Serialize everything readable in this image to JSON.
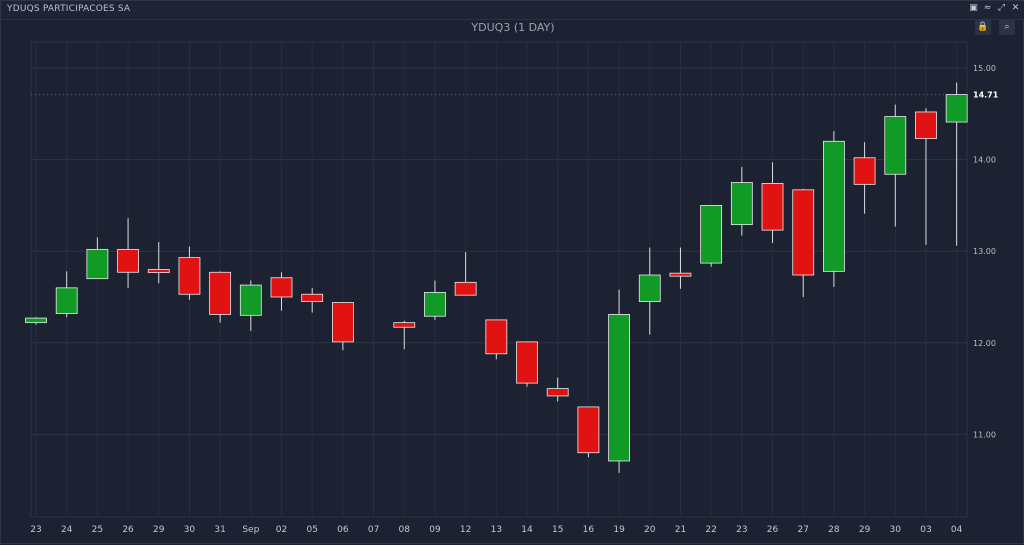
{
  "company": "YDUQS PARTICIPACOES SA",
  "toolbar_icons": [
    "window-icon",
    "settings-icon",
    "expand-icon",
    "close-icon"
  ],
  "buttons": {
    "lock_icon": "lock-icon",
    "zoom_icon": "zoom-icon"
  },
  "colors": {
    "up": "#119a26",
    "down": "#e01212",
    "background": "#1c2231",
    "grid": "#2c3446"
  },
  "chart_data": {
    "type": "candlestick",
    "title": "YDUQ3 (1 DAY)",
    "y_ticks": [
      "15.00",
      "14.00",
      "13.00",
      "12.00",
      "11.00"
    ],
    "last_price_label": "14.71",
    "last_price": 14.71,
    "ylim": [
      10.1,
      15.3
    ],
    "categories": [
      "23",
      "24",
      "25",
      "26",
      "29",
      "30",
      "31",
      "Sep",
      "02",
      "05",
      "06",
      "07",
      "08",
      "09",
      "12",
      "13",
      "14",
      "15",
      "16",
      "19",
      "20",
      "21",
      "22",
      "23",
      "26",
      "27",
      "28",
      "29",
      "30",
      "03",
      "04"
    ],
    "candles": [
      {
        "o": 12.22,
        "h": 12.28,
        "l": 12.2,
        "c": 12.27
      },
      {
        "o": 12.32,
        "h": 12.78,
        "l": 12.28,
        "c": 12.6
      },
      {
        "o": 12.7,
        "h": 13.15,
        "l": 12.7,
        "c": 13.02
      },
      {
        "o": 13.02,
        "h": 13.36,
        "l": 12.6,
        "c": 12.77
      },
      {
        "o": 12.8,
        "h": 13.1,
        "l": 12.65,
        "c": 12.77
      },
      {
        "o": 12.93,
        "h": 13.05,
        "l": 12.47,
        "c": 12.53
      },
      {
        "o": 12.77,
        "h": 12.78,
        "l": 12.22,
        "c": 12.31
      },
      {
        "o": 12.3,
        "h": 12.68,
        "l": 12.13,
        "c": 12.63
      },
      {
        "o": 12.71,
        "h": 12.77,
        "l": 12.35,
        "c": 12.5
      },
      {
        "o": 12.53,
        "h": 12.6,
        "l": 12.33,
        "c": 12.45
      },
      {
        "o": 12.44,
        "h": 12.44,
        "l": 11.92,
        "c": 12.01
      },
      null,
      {
        "o": 12.22,
        "h": 12.24,
        "l": 11.93,
        "c": 12.17
      },
      {
        "o": 12.29,
        "h": 12.68,
        "l": 12.25,
        "c": 12.55
      },
      {
        "o": 12.66,
        "h": 12.99,
        "l": 12.52,
        "c": 12.52
      },
      {
        "o": 12.25,
        "h": 12.25,
        "l": 11.82,
        "c": 11.88
      },
      {
        "o": 12.01,
        "h": 12.01,
        "l": 11.52,
        "c": 11.56
      },
      {
        "o": 11.5,
        "h": 11.62,
        "l": 11.36,
        "c": 11.42
      },
      {
        "o": 11.3,
        "h": 11.3,
        "l": 10.75,
        "c": 10.8
      },
      {
        "o": 10.71,
        "h": 12.58,
        "l": 10.58,
        "c": 12.31
      },
      {
        "o": 12.45,
        "h": 13.04,
        "l": 12.09,
        "c": 12.74
      },
      {
        "o": 12.76,
        "h": 13.04,
        "l": 12.59,
        "c": 12.74
      },
      {
        "o": 12.87,
        "h": 13.5,
        "l": 12.83,
        "c": 13.5
      },
      {
        "o": 13.29,
        "h": 13.92,
        "l": 13.17,
        "c": 13.75
      },
      {
        "o": 13.74,
        "h": 13.97,
        "l": 13.09,
        "c": 13.23
      },
      {
        "o": 13.67,
        "h": 13.68,
        "l": 12.5,
        "c": 12.74
      },
      {
        "o": 12.78,
        "h": 14.31,
        "l": 12.61,
        "c": 14.2
      },
      {
        "o": 14.02,
        "h": 14.19,
        "l": 13.41,
        "c": 13.73
      },
      {
        "o": 13.84,
        "h": 14.6,
        "l": 13.27,
        "c": 14.47
      },
      {
        "o": 14.52,
        "h": 14.56,
        "l": 13.07,
        "c": 14.23
      },
      {
        "o": 14.41,
        "h": 14.84,
        "l": 13.06,
        "c": 14.71
      }
    ]
  }
}
